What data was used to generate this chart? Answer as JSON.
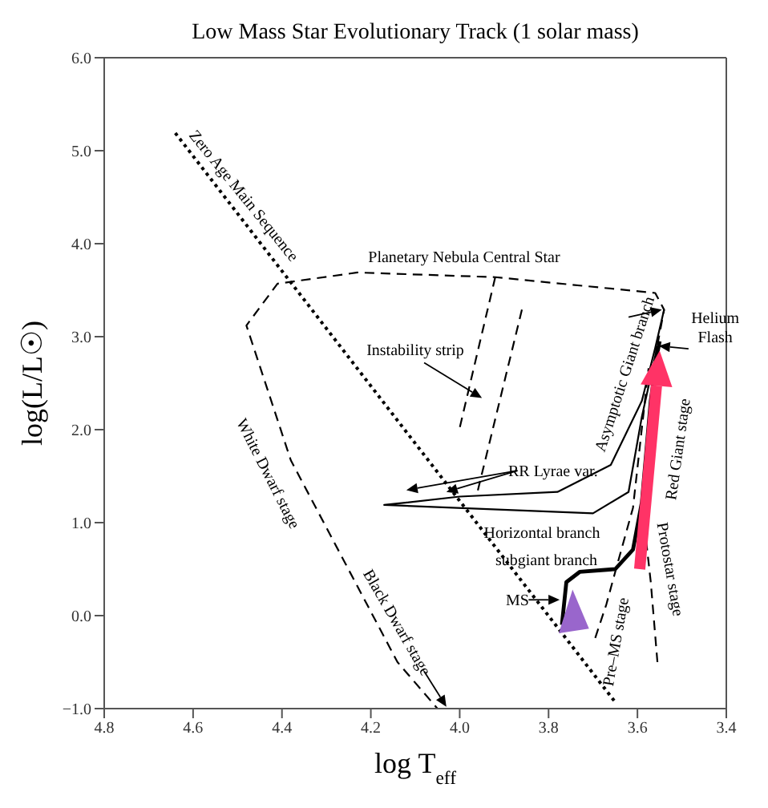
{
  "chart_data": {
    "type": "line",
    "title": "Low Mass Star Evolutionary Track (1 solar mass)",
    "xlabel": "log T$_{eff}$",
    "ylabel": "log(L/L☉)",
    "xlim": [
      4.8,
      3.4
    ],
    "xticks": [
      4.8,
      4.6,
      4.4,
      4.2,
      {
        "value": 4.0,
        "label": "4.0"
      },
      3.8,
      3.6,
      3.4
    ],
    "ylim": [
      -1.0,
      6.0
    ],
    "yticks": [
      {
        "value": -1.0,
        "label": "−1.0"
      },
      {
        "value": 0,
        "label": "0.0"
      },
      {
        "value": 1,
        "label": "1.0"
      },
      {
        "value": 2,
        "label": "2.0"
      },
      {
        "value": 3,
        "label": "3.0"
      },
      {
        "value": 4,
        "label": "4.0"
      },
      {
        "value": 5,
        "label": "5.0"
      },
      {
        "value": 6,
        "label": "6.0"
      }
    ],
    "marker": "none",
    "series": [
      {
        "color": "#000000",
        "line_style": "dotted",
        "x": [
          4.64,
          3.65
        ],
        "values": [
          5.19,
          -0.93
        ]
      },
      {
        "color": "#000000",
        "line_style": "dashed",
        "x": [
          3.555,
          3.54,
          3.56,
          3.92,
          4.23,
          4.41,
          4.48,
          4.38,
          4.14,
          4.05
        ],
        "values": [
          2.91,
          3.29,
          3.47,
          3.64,
          3.69,
          3.57,
          3.12,
          1.67,
          -0.5,
          -1.0
        ]
      },
      {
        "color": "#000000",
        "line_style": "solid",
        "x": [
          3.77,
          3.76,
          3.73,
          3.65,
          3.61,
          3.59,
          3.57,
          3.555,
          3.55
        ],
        "values": [
          -0.1,
          0.36,
          0.47,
          0.5,
          0.71,
          1.22,
          2.31,
          2.83,
          2.95
        ]
      },
      {
        "color": "#000000",
        "line_style": "solid",
        "x": [
          3.555,
          3.59,
          3.62,
          3.7,
          4.17,
          4.0,
          3.78,
          3.66,
          3.59,
          3.56,
          3.54
        ],
        "values": [
          2.9,
          2.14,
          1.33,
          1.1,
          1.19,
          1.28,
          1.33,
          1.62,
          2.31,
          2.88,
          3.29
        ]
      },
      {
        "color": "#000000",
        "line_style": "dashed",
        "x": [
          3.695,
          3.67,
          3.65,
          3.61,
          3.575
        ],
        "values": [
          -0.24,
          0.12,
          0.47,
          1.16,
          2.66
        ]
      },
      {
        "color": "#000000",
        "line_style": "dashed",
        "x": [
          3.555,
          3.57,
          3.59
        ],
        "values": [
          -0.5,
          0.36,
          1.22
        ]
      },
      {
        "color": "#000000",
        "line_style": "dashed",
        "x": [
          3.92,
          4.0
        ],
        "values": [
          3.64,
          2.02
        ]
      },
      {
        "color": "#000000",
        "line_style": "dashed",
        "x": [
          3.86,
          3.96
        ],
        "values": [
          3.29,
          1.33
        ]
      }
    ],
    "annotations": [
      "Zero Age Main Sequence",
      "Planetary Nebula Central Star",
      "Instability strip",
      {
        "text": "Asymptotic Giant branch",
        "x": 3.545,
        "y": 3.29
      },
      {
        "text": "Helium Flash",
        "x": 3.552,
        "y": 2.9
      },
      "Red Giant stage",
      {
        "text": "RR Lyrae var.",
        "x": 4.03,
        "y": 1.33
      },
      "Horizontal branch",
      "subgiant branch",
      {
        "text": "MS",
        "x": 3.775,
        "y": 0.17
      },
      "Pre–MS stage",
      "Protostar stage",
      "White Dwarf stage",
      "Black Dwarf stage"
    ]
  }
}
